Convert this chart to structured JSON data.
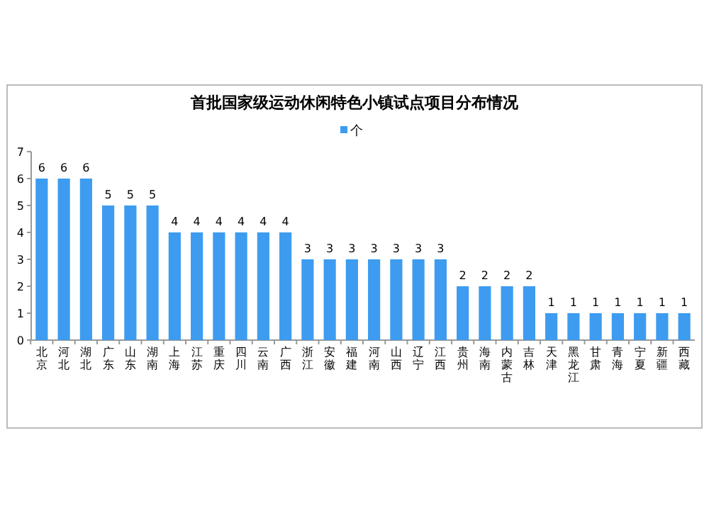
{
  "chart_data": {
    "type": "bar",
    "title": "首批国家级运动休闲特色小镇试点项目分布情况",
    "categories": [
      "北京",
      "河北",
      "湖北",
      "广东",
      "山东",
      "湖南",
      "上海",
      "江苏",
      "重庆",
      "四川",
      "云南",
      "广西",
      "浙江",
      "安徽",
      "福建",
      "河南",
      "山西",
      "辽宁",
      "江西",
      "贵州",
      "海南",
      "内蒙古",
      "吉林",
      "天津",
      "黑龙江",
      "甘肃",
      "青海",
      "宁夏",
      "新疆",
      "西藏"
    ],
    "series": [
      {
        "name": "个",
        "color": "#3d9cf0",
        "values": [
          6,
          6,
          6,
          5,
          5,
          5,
          4,
          4,
          4,
          4,
          4,
          4,
          3,
          3,
          3,
          3,
          3,
          3,
          3,
          2,
          2,
          2,
          2,
          1,
          1,
          1,
          1,
          1,
          1,
          1
        ]
      }
    ],
    "ylim": [
      0,
      7
    ],
    "yticks": [
      0,
      1,
      2,
      3,
      4,
      5,
      6,
      7
    ],
    "data_labels": true,
    "legend": "top",
    "grid": false
  }
}
